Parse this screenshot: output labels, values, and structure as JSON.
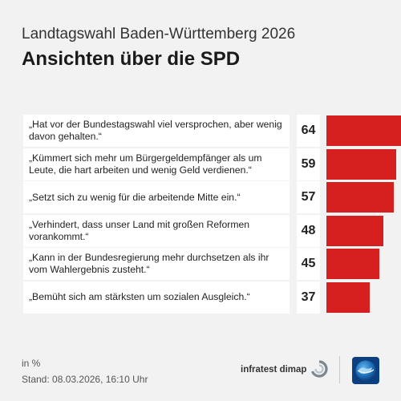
{
  "header": {
    "subtitle": "Landtagswahl Baden-Württemberg 2026",
    "title": "Ansichten über die SPD"
  },
  "chart_data": {
    "type": "bar",
    "orientation": "horizontal",
    "categories": [
      "„Hat vor der Bundestagswahl viel versprochen, aber wenig davon gehalten.“",
      "„Kümmert sich mehr um Bürgergeldempfänger als um Leute, die hart arbeiten und wenig Geld verdienen.“",
      "„Setzt sich zu wenig für die arbeitende Mitte ein.“",
      "„Verhindert, dass unser Land mit großen Reformen vorankommt.“",
      "„Kann in der Bundesregierung mehr durchsetzen als ihr vom Wahlergebnis zusteht.“",
      "„Bemüht sich am stärksten um sozialen Ausgleich.“"
    ],
    "values": [
      64,
      59,
      57,
      48,
      45,
      37
    ],
    "value_labels": [
      "64",
      "59",
      "57",
      "48",
      "45",
      "37"
    ],
    "xlim": [
      0,
      100
    ],
    "bar_color": "#d62020",
    "grid": false,
    "legend": "none"
  },
  "footer": {
    "unit": "in %",
    "date": "Stand:  08.03.2026, 16:10 Uhr",
    "brand": "infratest dimap"
  },
  "icons": {
    "brand_logo": "infratest-dimap-logo-icon",
    "broadcaster_logo": "tagesschau-globe-icon"
  }
}
